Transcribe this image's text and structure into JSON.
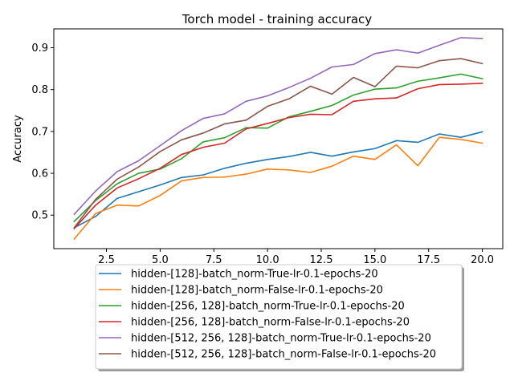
{
  "chart_data": {
    "type": "line",
    "title": "Torch model - training accuracy",
    "xlabel": "",
    "ylabel": "Accuracy",
    "xlim": [
      0.05,
      20.95
    ],
    "ylim": [
      0.42,
      0.945
    ],
    "xticks": [
      2.5,
      5.0,
      7.5,
      10.0,
      12.5,
      15.0,
      17.5,
      20.0
    ],
    "xtick_labels": [
      "2.5",
      "5.0",
      "7.5",
      "10.0",
      "12.5",
      "15.0",
      "17.5",
      "20.0"
    ],
    "yticks": [
      0.5,
      0.6,
      0.7,
      0.8,
      0.9
    ],
    "ytick_labels": [
      "0.5",
      "0.6",
      "0.7",
      "0.8",
      "0.9"
    ],
    "grid": false,
    "legend_position": "below",
    "x": [
      1,
      2,
      3,
      4,
      5,
      6,
      7,
      8,
      9,
      10,
      11,
      12,
      13,
      14,
      15,
      16,
      17,
      18,
      19,
      20
    ],
    "series": [
      {
        "name": "hidden-[128]-batch_norm-True-lr-0.1-epochs-20",
        "color": "#1f77b4",
        "values": [
          0.47,
          0.497,
          0.54,
          0.556,
          0.572,
          0.59,
          0.596,
          0.612,
          0.624,
          0.633,
          0.64,
          0.65,
          0.641,
          0.651,
          0.659,
          0.678,
          0.674,
          0.694,
          0.686,
          0.699
        ]
      },
      {
        "name": "hidden-[128]-batch_norm-False-lr-0.1-epochs-20",
        "color": "#ff7f0e",
        "values": [
          0.443,
          0.504,
          0.524,
          0.522,
          0.547,
          0.582,
          0.59,
          0.591,
          0.598,
          0.61,
          0.608,
          0.602,
          0.617,
          0.641,
          0.633,
          0.668,
          0.618,
          0.686,
          0.681,
          0.672
        ]
      },
      {
        "name": "hidden-[256, 128]-batch_norm-True-lr-0.1-epochs-20",
        "color": "#2ca02c",
        "values": [
          0.485,
          0.535,
          0.575,
          0.6,
          0.61,
          0.635,
          0.675,
          0.685,
          0.709,
          0.708,
          0.735,
          0.748,
          0.762,
          0.787,
          0.801,
          0.804,
          0.82,
          0.828,
          0.837,
          0.826
        ]
      },
      {
        "name": "hidden-[256, 128]-batch_norm-False-lr-0.1-epochs-20",
        "color": "#d62728",
        "values": [
          0.468,
          0.524,
          0.565,
          0.587,
          0.612,
          0.645,
          0.662,
          0.672,
          0.706,
          0.719,
          0.733,
          0.741,
          0.74,
          0.772,
          0.778,
          0.78,
          0.802,
          0.812,
          0.813,
          0.815
        ]
      },
      {
        "name": "hidden-[512, 256, 128]-batch_norm-True-lr-0.1-epochs-20",
        "color": "#9467bd",
        "values": [
          0.502,
          0.558,
          0.604,
          0.63,
          0.666,
          0.702,
          0.731,
          0.742,
          0.772,
          0.785,
          0.805,
          0.827,
          0.854,
          0.86,
          0.886,
          0.895,
          0.887,
          0.906,
          0.924,
          0.922
        ]
      },
      {
        "name": "hidden-[512, 256, 128]-batch_norm-False-lr-0.1-epochs-20",
        "color": "#8c564b",
        "values": [
          0.47,
          0.538,
          0.586,
          0.615,
          0.652,
          0.68,
          0.696,
          0.718,
          0.727,
          0.76,
          0.778,
          0.808,
          0.789,
          0.829,
          0.807,
          0.856,
          0.852,
          0.869,
          0.874,
          0.862
        ]
      }
    ]
  }
}
